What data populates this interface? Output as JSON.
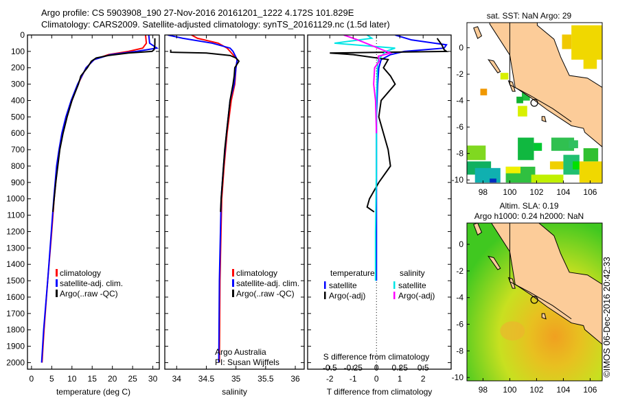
{
  "title": {
    "line1": "Argo profile: CS 5903908_190 27-Nov-2016 20161201_1222 4.172S 101.829E",
    "line2": "Climatology: CARS2009. Satellite-adjusted climatology: synTS_20161129.nc (1.5d later)"
  },
  "credit": "©IMOS 06-Dec-2016 20:42:33",
  "colors": {
    "climatology": "#ff0000",
    "satellite": "#0000ff",
    "argo": "#000000",
    "sal_sat": "#00e5e5",
    "sal_argo": "#ff00ff",
    "land": "#fccc99"
  },
  "chart_data": [
    {
      "type": "line",
      "name": "temperature",
      "xlabel": "temperature (deg C)",
      "ylabel": "depth",
      "xlim": [
        -1,
        31.6
      ],
      "ylim": [
        0,
        2040
      ],
      "xticks": [
        0,
        5,
        10,
        15,
        20,
        25,
        30
      ],
      "yticks": [
        0,
        100,
        200,
        300,
        400,
        500,
        600,
        700,
        800,
        900,
        1000,
        1100,
        1200,
        1300,
        1400,
        1500,
        1600,
        1700,
        1800,
        1900,
        2000
      ],
      "legend": [
        "climatology",
        "satellite-adj. clim.",
        "Argo(..raw -QC)"
      ],
      "series": [
        {
          "name": "climatology",
          "color": "#ff0000",
          "depth": [
            0,
            50,
            80,
            100,
            120,
            150,
            200,
            300,
            400,
            500,
            600,
            700,
            800,
            1000,
            1200,
            1500,
            1800,
            2000
          ],
          "values": [
            28.2,
            28.4,
            27.5,
            24,
            19,
            15.5,
            13.5,
            11.5,
            10,
            8.6,
            7.6,
            6.9,
            6.4,
            5.6,
            5,
            4,
            3.1,
            2.6
          ]
        },
        {
          "name": "satellite-adj. clim.",
          "color": "#0000ff",
          "depth": [
            0,
            50,
            80,
            100,
            120,
            150,
            200,
            300,
            400,
            500,
            600,
            700,
            800,
            1000,
            1200,
            1500,
            1800,
            2000
          ],
          "values": [
            29,
            29.2,
            31,
            26,
            19.5,
            15.5,
            13.5,
            11.4,
            9.8,
            8.5,
            7.5,
            6.8,
            6.2,
            5.5,
            4.9,
            4,
            3,
            2.5
          ]
        },
        {
          "name": "Argo(..raw -QC)",
          "color": "#000000",
          "depth": [
            20,
            60,
            90,
            100,
            110,
            125,
            140,
            160,
            200,
            250,
            300,
            400,
            500,
            600,
            700,
            800,
            900,
            1000,
            1080
          ],
          "values": [
            30.5,
            30.5,
            30.3,
            29.8,
            24,
            19,
            16,
            14.8,
            13.8,
            12.2,
            11.6,
            10,
            8.8,
            7.8,
            7,
            6.5,
            6,
            5.6,
            5.3
          ]
        }
      ]
    },
    {
      "type": "line",
      "name": "salinity",
      "xlabel": "salinity",
      "ylabel": "depth",
      "xlim": [
        33.8,
        36.15
      ],
      "ylim": [
        0,
        2040
      ],
      "xticks": [
        34,
        34.5,
        35,
        35.5,
        36
      ],
      "legend": [
        "climatology",
        "satellite-adj. clim.",
        "Argo(..raw -QC)"
      ],
      "annotation": [
        "Argo Australia",
        "PI: Susan Wijffels"
      ],
      "series": [
        {
          "name": "climatology",
          "color": "#ff0000",
          "depth": [
            0,
            20,
            50,
            80,
            100,
            150,
            200,
            300,
            400,
            600,
            800,
            1000,
            1500,
            2000
          ],
          "values": [
            34.25,
            34.35,
            34.7,
            34.85,
            34.9,
            35.02,
            35.0,
            34.98,
            34.92,
            34.85,
            34.8,
            34.76,
            34.73,
            34.72
          ]
        },
        {
          "name": "satellite-adj. clim.",
          "color": "#0000ff",
          "depth": [
            0,
            20,
            50,
            80,
            100,
            150,
            200,
            300,
            400,
            600,
            800,
            1000,
            1500,
            2000
          ],
          "values": [
            33.85,
            34.1,
            34.6,
            34.9,
            34.95,
            35.02,
            35.0,
            34.97,
            34.9,
            34.84,
            34.79,
            34.75,
            34.72,
            34.71
          ]
        },
        {
          "name": "Argo(..raw -QC)",
          "color": "#000000",
          "depth": [
            90,
            105,
            110,
            125,
            140,
            160,
            200,
            250,
            300,
            400,
            500,
            600,
            700,
            800,
            900,
            1000,
            1080
          ],
          "values": [
            33.9,
            33.9,
            34.5,
            34.9,
            35.0,
            35.05,
            34.98,
            34.97,
            34.95,
            34.9,
            34.87,
            34.84,
            34.81,
            34.79,
            34.77,
            34.75,
            34.74
          ]
        }
      ]
    },
    {
      "type": "line",
      "name": "difference",
      "xlabel": "T difference from climatology",
      "x2label": "S difference from climatology",
      "xlim": [
        -2.95,
        3.2
      ],
      "ylim": [
        0,
        2040
      ],
      "xticks": [
        -2,
        -1,
        0,
        1,
        2
      ],
      "x2ticks": [
        -0.5,
        -0.25,
        0,
        0.25,
        0.5
      ],
      "legend": {
        "temperature": "temperature",
        "salinity": "salinity",
        "items": [
          "satellite",
          "Argo(-adj)",
          "satellite",
          "Argo(-adj)"
        ]
      },
      "series": [
        {
          "name": "T satellite",
          "color": "#0000ff",
          "depth": [
            0,
            30,
            60,
            80,
            100,
            120,
            150,
            200,
            300,
            500,
            800,
            1000,
            1500,
            1500
          ],
          "values": [
            0.8,
            1.5,
            3.0,
            2.9,
            1.2,
            0.6,
            0.2,
            0.1,
            0.05,
            0,
            0,
            0,
            0,
            0
          ]
        },
        {
          "name": "T Argo(-adj)",
          "color": "#000000",
          "depth": [
            20,
            60,
            90,
            100,
            110,
            120,
            150,
            200,
            250,
            300,
            400,
            500,
            600,
            700,
            800,
            900,
            1000,
            1050,
            1080
          ],
          "values": [
            2.6,
            2.8,
            2.9,
            3.0,
            -2.0,
            -1.0,
            0.5,
            0.3,
            0.6,
            0.8,
            0.2,
            0.1,
            0.3,
            0.5,
            0.6,
            0.1,
            -0.3,
            -0.4,
            -0.1
          ]
        },
        {
          "name": "S satellite",
          "color": "#00e5e5",
          "depth": [
            0,
            20,
            50,
            80,
            100,
            150,
            200,
            400,
            800,
            1200,
            1500
          ],
          "values": [
            -0.1,
            -0.05,
            -0.45,
            0.2,
            0.1,
            0.02,
            0.01,
            0.0,
            0.0,
            -0.01,
            -0.01
          ]
        },
        {
          "name": "S Argo(-adj)",
          "color": "#ff00ff",
          "depth": [
            0,
            30,
            110,
            130,
            160,
            200,
            300,
            400,
            600
          ],
          "values": [
            -0.35,
            -0.2,
            0.15,
            0.02,
            0.03,
            -0.02,
            -0.03,
            -0.01,
            0.0
          ]
        }
      ]
    },
    {
      "type": "heatmap",
      "name": "sat-sst-map",
      "title": "sat. SST: NaN Argo: 29",
      "xlim": [
        96.8,
        106.9
      ],
      "ylim": [
        -10.25,
        1.9
      ],
      "xticks": [
        98,
        100,
        102,
        104,
        106
      ],
      "yticks": [
        0,
        -2,
        -4,
        -6,
        -8,
        -10
      ],
      "float": [
        101.83,
        -4.17
      ],
      "cells": [
        [
          104.6,
          -0.9,
          106.9,
          1.7,
          "#f0d800"
        ],
        [
          103.9,
          -0.1,
          104.6,
          1.0,
          "#f0c800"
        ],
        [
          105.5,
          -1.6,
          106.5,
          -0.6,
          "#f0d800"
        ],
        [
          99.3,
          -2.4,
          99.9,
          -1.9,
          "#d8f000"
        ],
        [
          97.8,
          -3.6,
          98.3,
          -3.1,
          "#f09800"
        ],
        [
          100.9,
          -4.0,
          101.5,
          -3.4,
          "#20c040"
        ],
        [
          100.5,
          -4.2,
          101.0,
          -3.7,
          "#10b030"
        ],
        [
          100.6,
          -5.2,
          101.3,
          -4.4,
          "#d8f000"
        ],
        [
          106.0,
          -5.2,
          106.9,
          -3.9,
          "#f0a000"
        ],
        [
          96.8,
          -8.5,
          98.2,
          -7.4,
          "#80d820"
        ],
        [
          100.6,
          -8.5,
          101.8,
          -6.8,
          "#10b840"
        ],
        [
          101.8,
          -7.8,
          102.4,
          -7.2,
          "#00c830"
        ],
        [
          103.1,
          -7.8,
          104.8,
          -6.8,
          "#30c050"
        ],
        [
          96.8,
          -9.6,
          98.6,
          -8.6,
          "#10b060"
        ],
        [
          97.4,
          -10.2,
          99.3,
          -9.1,
          "#10b0b0"
        ],
        [
          98.5,
          -10.2,
          99.0,
          -9.9,
          "#0030c0"
        ],
        [
          99.7,
          -10.2,
          101.9,
          -9.0,
          "#30c040"
        ],
        [
          99.7,
          -9.5,
          100.8,
          -9.0,
          "#f0f000"
        ],
        [
          101.6,
          -10.2,
          104.0,
          -9.6,
          "#c0f000"
        ],
        [
          103.0,
          -9.2,
          104.0,
          -8.6,
          "#f0d000"
        ],
        [
          104.0,
          -9.6,
          105.2,
          -8.1,
          "#20c070"
        ],
        [
          104.7,
          -9.2,
          105.2,
          -8.6,
          "#00e000"
        ],
        [
          105.2,
          -10.2,
          106.9,
          -8.6,
          "#f0d800"
        ],
        [
          105.5,
          -8.6,
          106.6,
          -7.6,
          "#30c030"
        ],
        [
          104.4,
          -7.6,
          105.1,
          -7.0,
          "#30c060"
        ]
      ]
    },
    {
      "type": "heatmap",
      "name": "altim-sla-map",
      "title": [
        "Altim. SLA: 0.19",
        "Argo h1000: 0.24 h2000: NaN"
      ],
      "xlim": [
        96.8,
        106.9
      ],
      "ylim": [
        -10.25,
        1.6
      ],
      "xticks": [
        98,
        100,
        102,
        104,
        106
      ],
      "yticks": [
        0,
        -2,
        -4,
        -6,
        -8,
        -10
      ],
      "float": [
        101.83,
        -4.17
      ]
    }
  ]
}
